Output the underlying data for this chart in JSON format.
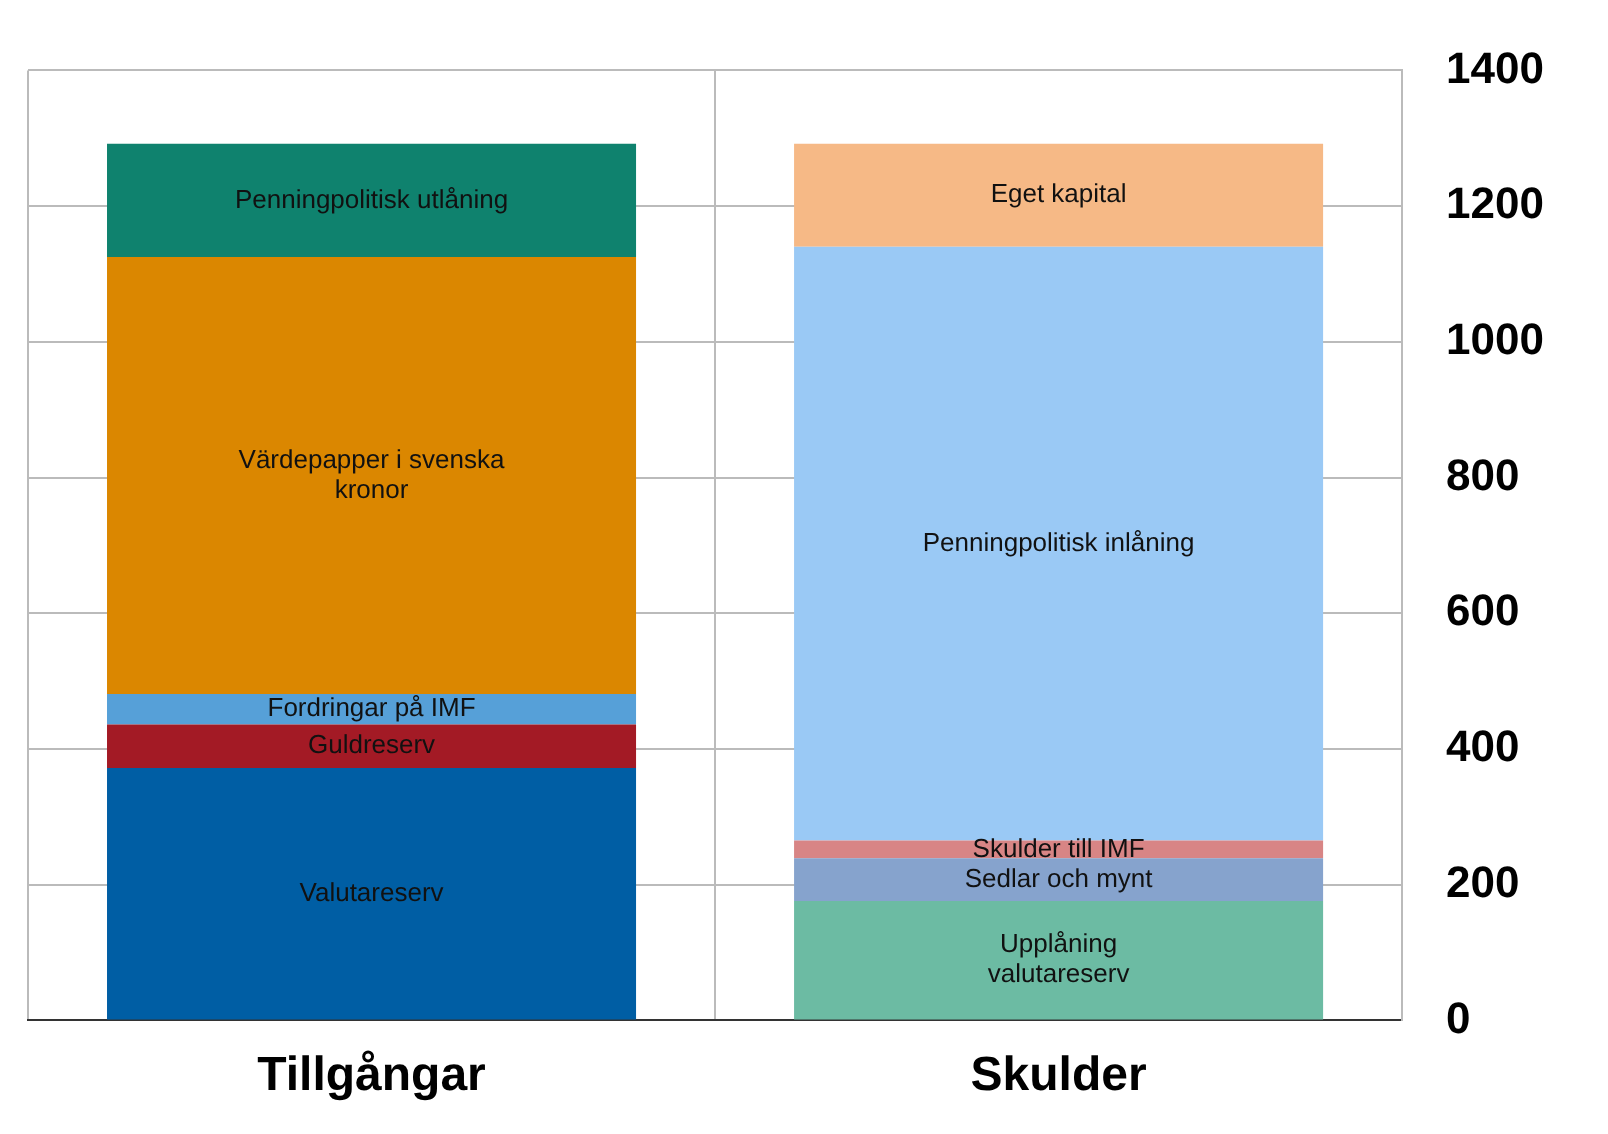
{
  "chart_data": {
    "type": "bar",
    "stacked": true,
    "categories": [
      "Tillgångar",
      "Skulder"
    ],
    "series": [
      {
        "name": "Valutareserv",
        "color": "#005ea4",
        "values": [
          372,
          null
        ]
      },
      {
        "name": "Guldreserv",
        "color": "#a31a25",
        "values": [
          64,
          null
        ]
      },
      {
        "name": "Fordringar på IMF",
        "color": "#56a0d8",
        "values": [
          45,
          null
        ]
      },
      {
        "name": "Värdepapper i svenska\nkronor",
        "color": "#db8700",
        "values": [
          644,
          null
        ]
      },
      {
        "name": "Penningpolitisk utlåning",
        "color": "#0f826e",
        "values": [
          167,
          null
        ]
      },
      {
        "name": "Upplåning\nvalutareserv",
        "color": "#6cbba3",
        "values": [
          null,
          176
        ]
      },
      {
        "name": "Sedlar och mynt",
        "color": "#86a3cd",
        "values": [
          null,
          63
        ]
      },
      {
        "name": "Skulder till IMF",
        "color": "#d88585",
        "values": [
          null,
          26
        ]
      },
      {
        "name": "Penningpolitisk inlåning",
        "color": "#9ac9f5",
        "values": [
          null,
          875
        ]
      },
      {
        "name": "Eget kapital",
        "color": "#f6b986",
        "values": [
          null,
          152
        ]
      }
    ],
    "ylim": [
      0,
      1400
    ],
    "yticks": [
      0,
      200,
      400,
      600,
      800,
      1000,
      1200,
      1400
    ],
    "grid": true,
    "legend": false
  }
}
